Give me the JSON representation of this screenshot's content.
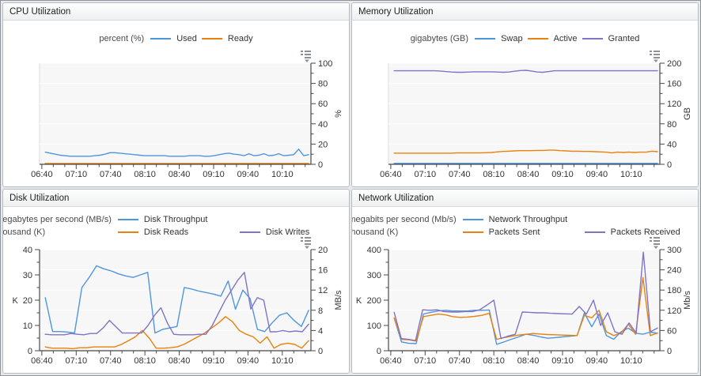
{
  "accent_colors": {
    "blue": "#4e96de",
    "orange": "#e8820c",
    "purple": "#8273c4"
  },
  "panels": [
    {
      "title": "CPU Utilization"
    },
    {
      "title": "Memory Utilization"
    },
    {
      "title": "Disk Utilization"
    },
    {
      "title": "Network Utilization"
    }
  ],
  "chart_data": [
    {
      "type": "line",
      "title": "CPU Utilization",
      "legend_rows": [
        {
          "unit": "percent (%)",
          "series_idx": [
            0,
            1
          ]
        }
      ],
      "x_axis": {
        "labels": [
          "06:40",
          "07:10",
          "07:40",
          "08:10",
          "08:40",
          "09:10",
          "09:40",
          "10:10"
        ],
        "start": 398,
        "end": 635,
        "major_start": 400,
        "major_step": 30,
        "minor_step": 10,
        "data_start": 403,
        "data_end": 633
      },
      "right_axis": {
        "min": 0,
        "max": 100,
        "major": 20,
        "minor": 10,
        "title": "%"
      },
      "left_axis": null,
      "series": [
        {
          "name": "Used",
          "color": "#4e96de",
          "axis": "right",
          "values": [
            12,
            11,
            10,
            9,
            8.5,
            8,
            8,
            8,
            8,
            8,
            8.5,
            9,
            10,
            11.5,
            11.5,
            11,
            10.5,
            10,
            9.5,
            9,
            8.5,
            8.5,
            8.5,
            8.5,
            8.5,
            8,
            8,
            8,
            8,
            8.5,
            8.5,
            8.5,
            8,
            8,
            8.5,
            9.5,
            10.5,
            11,
            10,
            9.5,
            8.5,
            10.5,
            8.5,
            9,
            10.5,
            8.5,
            9,
            10.5,
            8.5,
            9,
            9.5,
            15,
            8.5,
            9.5
          ]
        },
        {
          "name": "Ready",
          "color": "#e8820c",
          "axis": "right",
          "values": [
            0.8,
            0.8
          ]
        }
      ]
    },
    {
      "type": "line",
      "title": "Memory Utilization",
      "legend_rows": [
        {
          "unit": "gigabytes (GB)",
          "series_idx": [
            0,
            1,
            2
          ]
        }
      ],
      "x_axis": {
        "labels": [
          "06:40",
          "07:10",
          "07:40",
          "08:10",
          "08:40",
          "09:10",
          "09:40",
          "10:10"
        ],
        "start": 398,
        "end": 635,
        "major_start": 400,
        "major_step": 30,
        "minor_step": 10,
        "data_start": 403,
        "data_end": 633
      },
      "right_axis": {
        "min": 0,
        "max": 200,
        "major": 40,
        "minor": 20,
        "title": "GB"
      },
      "left_axis": null,
      "series": [
        {
          "name": "Swap",
          "color": "#4e96de",
          "axis": "right",
          "values": [
            1.8,
            1.8
          ]
        },
        {
          "name": "Active",
          "color": "#e8820c",
          "axis": "right",
          "values": [
            22,
            22,
            22,
            22,
            22,
            22,
            22,
            22,
            22,
            22,
            22,
            22.5,
            22.5,
            22.5,
            22.5,
            22.5,
            23,
            23.5,
            24.5,
            25.5,
            26,
            26.5,
            27,
            27,
            27,
            27.5,
            27.5,
            28,
            28,
            27,
            26.5,
            26,
            26,
            25.5,
            25.5,
            25,
            24.5,
            24,
            22.5,
            24,
            23.5,
            24,
            23.5,
            24,
            24,
            26,
            25
          ]
        },
        {
          "name": "Granted",
          "color": "#8273c4",
          "axis": "right",
          "values": [
            185,
            185,
            185,
            185,
            185,
            185,
            185,
            185,
            184.5,
            183.5,
            182.5,
            182,
            182,
            182.5,
            183,
            183,
            183,
            183,
            182.5,
            182,
            182.5,
            184,
            185.5,
            186,
            184.5,
            182.5,
            182,
            183.5,
            185,
            185,
            185,
            185,
            185,
            185,
            185,
            185,
            185,
            185,
            185,
            185,
            185,
            185,
            185,
            185,
            185,
            185,
            185
          ]
        }
      ]
    },
    {
      "type": "line",
      "title": "Disk Utilization",
      "legend_rows": [
        {
          "unit": "megabytes per second (MB/s)",
          "series_idx": [
            0
          ]
        },
        {
          "unit": "thousand (K)",
          "series_idx": [
            1,
            2
          ]
        }
      ],
      "x_axis": {
        "labels": [
          "06:40",
          "07:10",
          "07:40",
          "08:10",
          "08:40",
          "09:10",
          "09:40",
          "10:10"
        ],
        "start": 398,
        "end": 635,
        "major_start": 400,
        "major_step": 30,
        "minor_step": 10,
        "data_start": 403,
        "data_end": 633
      },
      "right_axis": {
        "min": 0,
        "max": 20,
        "major": 4,
        "minor": 2,
        "title": "MB/s"
      },
      "left_axis": {
        "min": 0,
        "max": 40,
        "major": 10,
        "minor": 5,
        "title": "K"
      },
      "series": [
        {
          "name": "Disk Throughput",
          "color": "#4e96de",
          "axis": "right",
          "values": [
            10.5,
            3.8,
            3.8,
            3.7,
            3.5,
            12.5,
            14.5,
            16.8,
            16.2,
            15.8,
            15.2,
            14.8,
            14.5,
            15,
            15.5,
            3.5,
            4.2,
            4.5,
            4.8,
            12.5,
            12.2,
            11.8,
            11.5,
            11.2,
            10.8,
            13.8,
            8.2,
            12,
            10.3,
            4.2,
            3.8,
            5.5,
            7,
            7.5,
            6,
            4.8,
            8
          ]
        },
        {
          "name": "Disk Reads",
          "color": "#e8820c",
          "axis": "left",
          "values": [
            1.5,
            1,
            1,
            1,
            0.8,
            1.2,
            1.2,
            1.5,
            1.5,
            1.5,
            1.5,
            2.5,
            4,
            5.5,
            8,
            5,
            1,
            1,
            1.2,
            1.5,
            2.5,
            4,
            5.5,
            7,
            9,
            11,
            13.5,
            11.5,
            8,
            6.5,
            5.5,
            3,
            5.5,
            1,
            2.5,
            3,
            2.5,
            1,
            4
          ]
        },
        {
          "name": "Disk Writes",
          "color": "#8273c4",
          "axis": "left",
          "values": [
            6.5,
            6.3,
            6.3,
            6.3,
            6.8,
            6.5,
            6.3,
            6.8,
            6.8,
            9,
            12,
            9.5,
            7,
            7,
            7,
            7,
            10,
            14,
            17,
            11,
            6.5,
            6.3,
            6.3,
            6.3,
            6.5,
            6.5,
            10,
            15,
            20,
            24,
            28,
            31,
            16.5,
            21,
            20,
            7.5,
            7.5,
            8,
            7.5,
            7.8,
            7.5,
            10.5
          ]
        }
      ]
    },
    {
      "type": "line",
      "title": "Network Utilization",
      "legend_rows": [
        {
          "unit": "megabits per second (Mb/s)",
          "series_idx": [
            0
          ]
        },
        {
          "unit": "thousand (K)",
          "series_idx": [
            1,
            2
          ]
        }
      ],
      "x_axis": {
        "labels": [
          "06:40",
          "07:10",
          "07:40",
          "08:10",
          "08:40",
          "09:10",
          "09:40",
          "10:10"
        ],
        "start": 398,
        "end": 635,
        "major_start": 400,
        "major_step": 30,
        "minor_step": 10,
        "data_start": 403,
        "data_end": 633
      },
      "right_axis": {
        "min": 0,
        "max": 300,
        "major": 60,
        "minor": 30,
        "title": "Mb/s"
      },
      "left_axis": {
        "min": 0,
        "max": 400,
        "major": 100,
        "minor": 50,
        "title": "K"
      },
      "series": [
        {
          "name": "Network Throughput",
          "color": "#4e96de",
          "axis": "right",
          "values": [
            97,
            26,
            22,
            21,
            109,
            114,
            118,
            120,
            118,
            118,
            118,
            120,
            120,
            121,
            19,
            26,
            34,
            41,
            49,
            46,
            41,
            37,
            39,
            41,
            43,
            45,
            112,
            71,
            109,
            45,
            34,
            56,
            67,
            52,
            49,
            55,
            52
          ]
        },
        {
          "name": "Packets Sent",
          "color": "#e8820c",
          "axis": "left",
          "values": [
            130,
            45,
            43,
            38,
            135,
            140,
            145,
            142,
            135,
            132,
            133,
            136,
            140,
            148,
            45,
            52,
            57,
            62,
            65,
            68,
            66,
            64,
            63,
            62,
            61,
            60,
            140,
            130,
            160,
            75,
            60,
            70,
            105,
            65,
            290,
            60,
            70
          ]
        },
        {
          "name": "Packets Received",
          "color": "#8273c4",
          "axis": "left",
          "values": [
            152,
            48,
            45,
            40,
            162,
            160,
            162,
            155,
            153,
            153,
            155,
            155,
            162,
            180,
            200,
            48,
            58,
            65,
            153,
            152,
            150,
            150,
            148,
            147,
            146,
            145,
            175,
            145,
            200,
            100,
            150,
            75,
            65,
            110,
            70,
            390,
            75,
            90
          ]
        }
      ]
    }
  ]
}
